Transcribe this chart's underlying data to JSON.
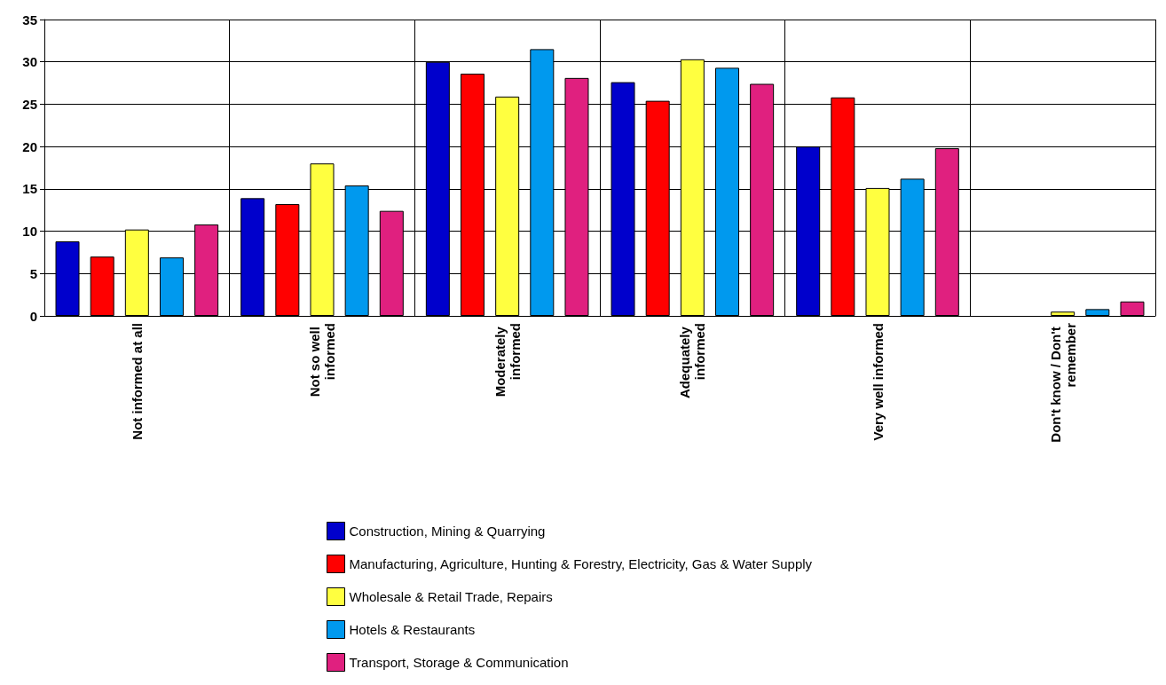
{
  "chart_data": {
    "type": "bar",
    "categories": [
      "Not informed at all",
      "Not so well informed",
      "Moderately informed",
      "Adequately informed",
      "Very well informed",
      "Don't know / Don't remember"
    ],
    "series": [
      {
        "name": "Construction, Mining & Quarrying",
        "color": "#0000cc",
        "values": [
          8.8,
          13.9,
          30.0,
          27.6,
          20.0,
          0
        ]
      },
      {
        "name": "Manufacturing, Agriculture, Hunting & Forestry, Electricity, Gas & Water Supply",
        "color": "#ff0000",
        "values": [
          7.0,
          13.2,
          28.6,
          25.4,
          25.8,
          0
        ]
      },
      {
        "name": "Wholesale & Retail Trade, Repairs",
        "color": "#ffff40",
        "values": [
          10.2,
          18.0,
          25.9,
          30.3,
          15.1,
          0.5
        ]
      },
      {
        "name": "Hotels & Restaurants",
        "color": "#0099ee",
        "values": [
          6.9,
          15.4,
          31.5,
          29.3,
          16.2,
          0.8
        ]
      },
      {
        "name": "Transport, Storage & Communication",
        "color": "#e0207f",
        "values": [
          10.8,
          12.4,
          28.1,
          27.4,
          19.8,
          1.7
        ]
      }
    ],
    "ylim": [
      0,
      35
    ],
    "yticks": [
      0,
      5,
      10,
      15,
      20,
      25,
      30,
      35
    ],
    "grid": true,
    "legend": "bottom"
  }
}
